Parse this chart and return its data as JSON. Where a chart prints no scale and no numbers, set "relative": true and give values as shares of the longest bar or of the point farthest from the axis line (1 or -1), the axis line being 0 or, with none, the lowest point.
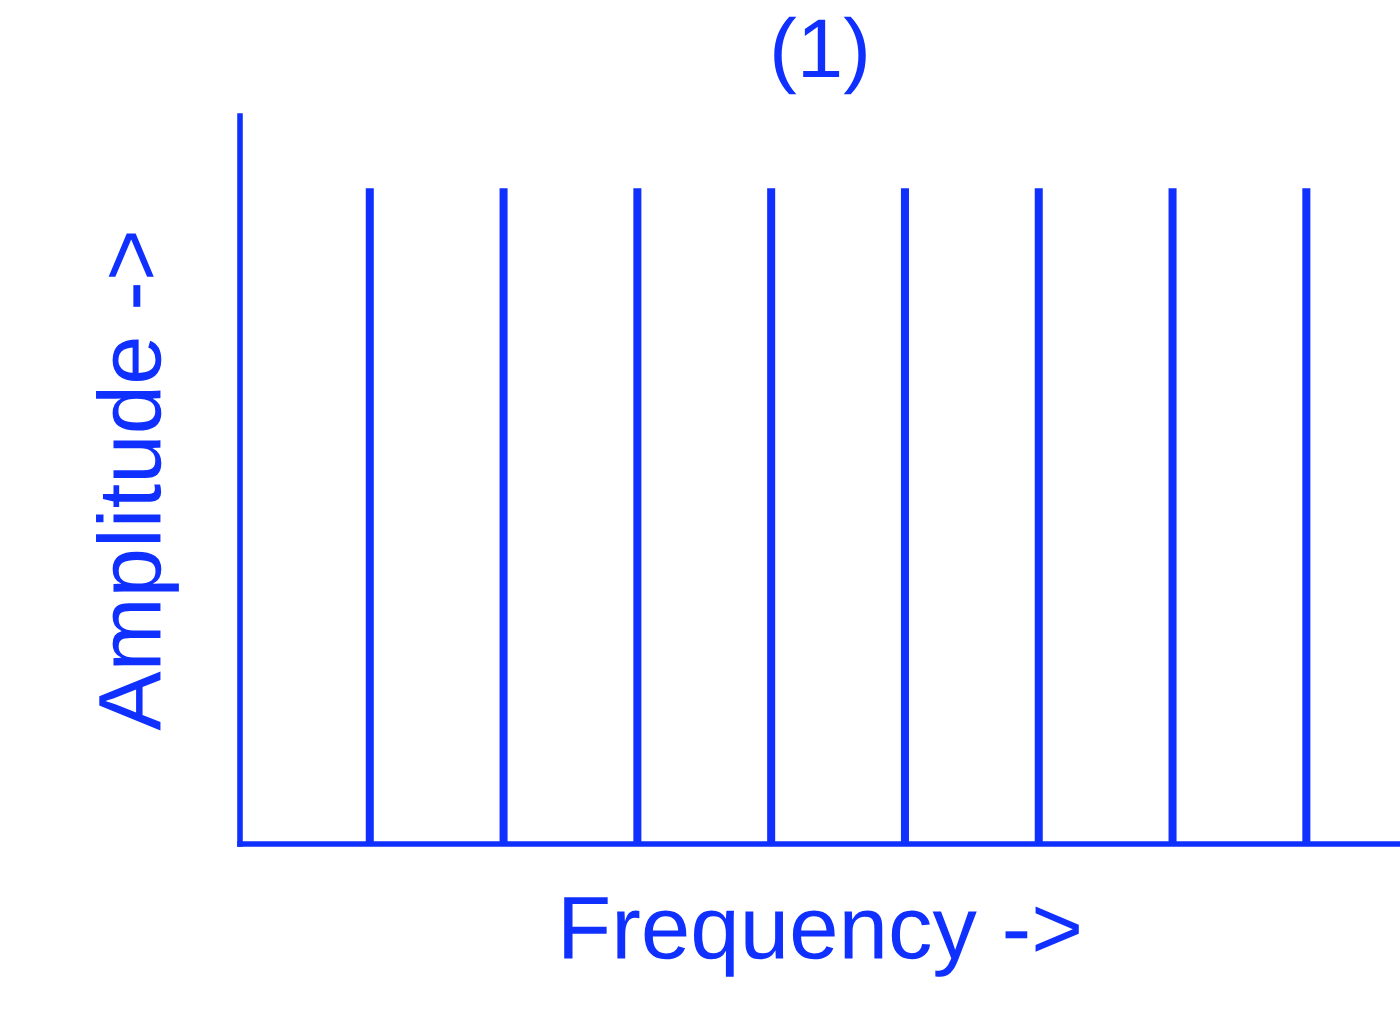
{
  "chart_data": {
    "type": "bar",
    "title": "(1)",
    "xlabel": "Frequency ->",
    "ylabel": "Amplitude ->",
    "categories": [
      null,
      null,
      null,
      null,
      null,
      null,
      null,
      null
    ],
    "values": [
      1,
      1,
      1,
      1,
      1,
      1,
      1,
      1
    ],
    "color": "#1030ff",
    "relative": true
  }
}
